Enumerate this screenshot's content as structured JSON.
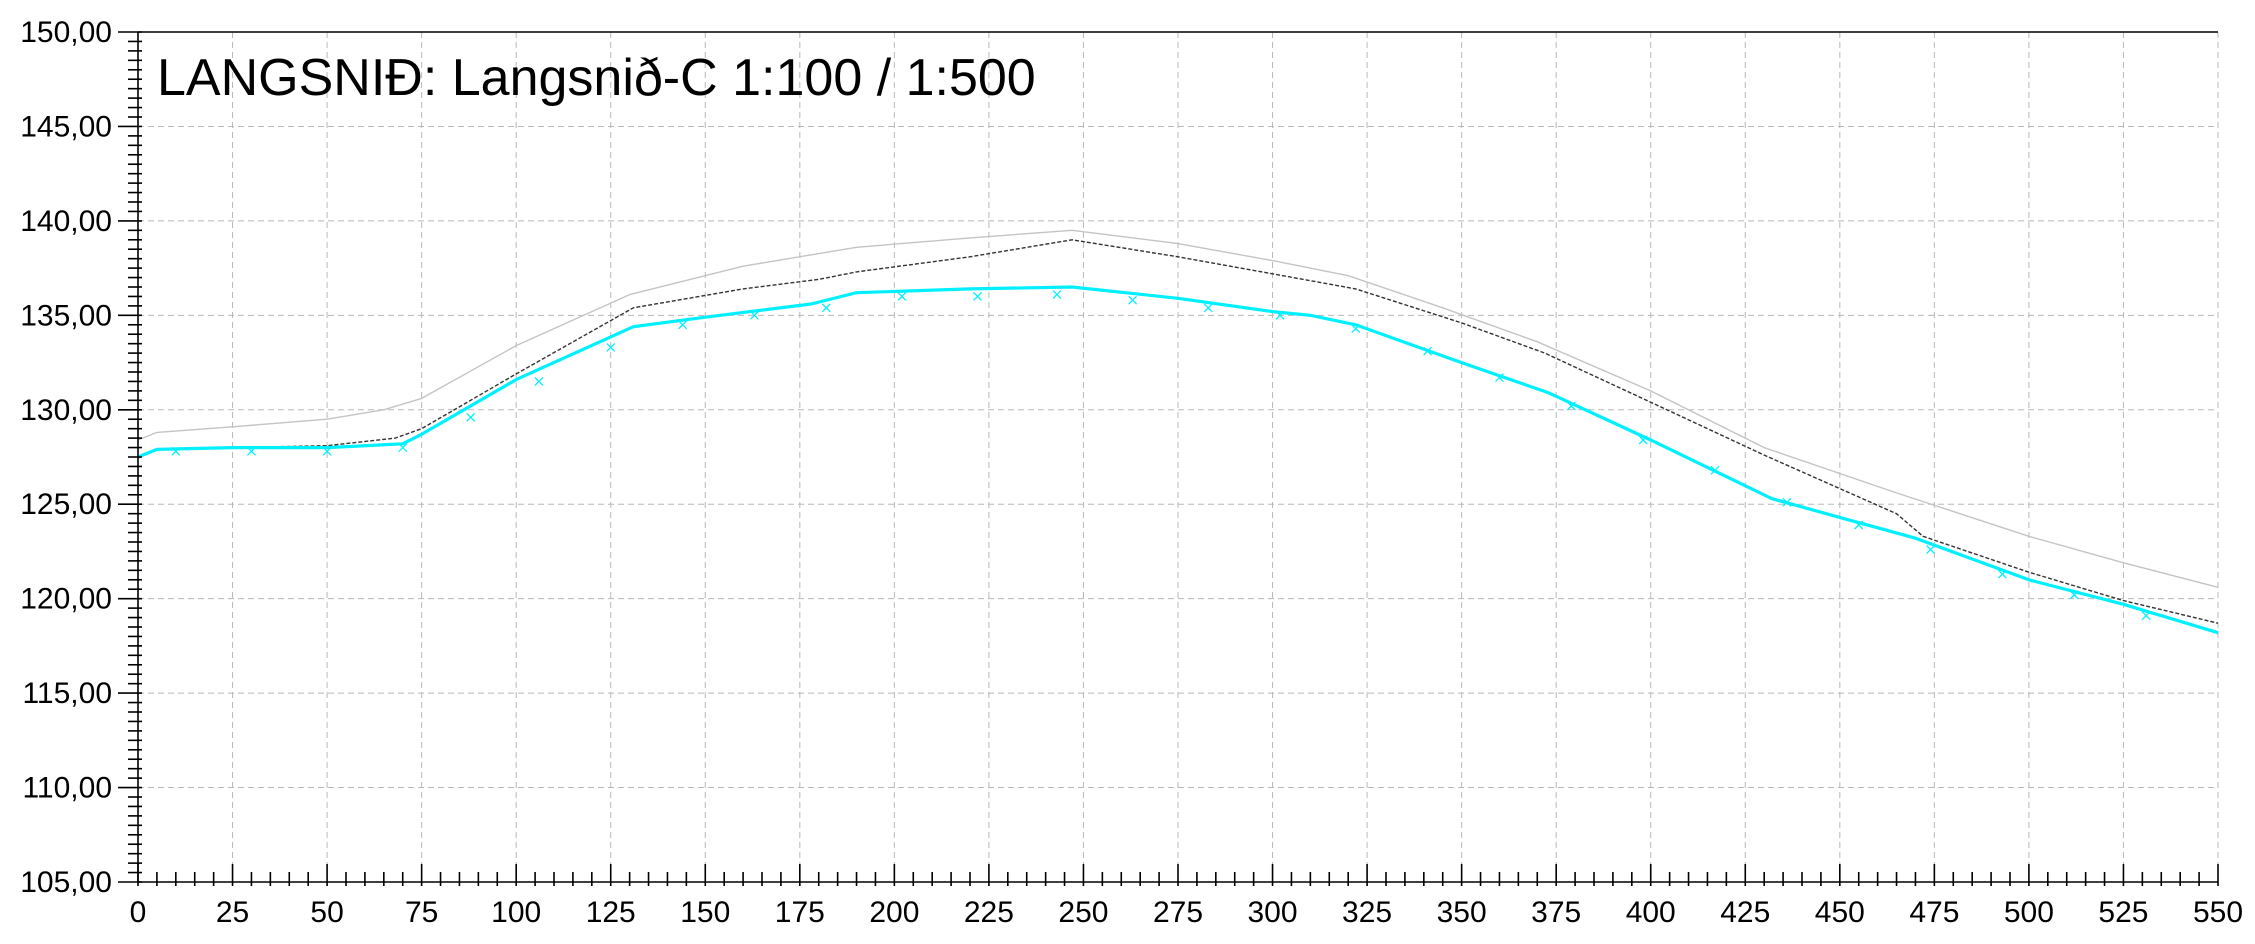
{
  "chart_data": {
    "type": "line",
    "title": "LANGSNIÐ: Langsnið-C 1:100 / 1:500",
    "xlabel": "",
    "ylabel": "",
    "xlim": [
      0,
      550
    ],
    "ylim": [
      105,
      150
    ],
    "x_ticks": [
      0,
      25,
      50,
      75,
      100,
      125,
      150,
      175,
      200,
      225,
      250,
      275,
      300,
      325,
      350,
      375,
      400,
      425,
      450,
      475,
      500,
      525,
      550
    ],
    "x_tick_labels": [
      "0",
      "25",
      "50",
      "75",
      "100",
      "125",
      "150",
      "175",
      "200",
      "225",
      "250",
      "275",
      "300",
      "325",
      "350",
      "375",
      "400",
      "425",
      "450",
      "475",
      "500",
      "525",
      "550"
    ],
    "y_ticks": [
      105,
      110,
      115,
      120,
      125,
      130,
      135,
      140,
      145,
      150
    ],
    "y_tick_labels": [
      "105,00",
      "110,00",
      "115,00",
      "120,00",
      "125,00",
      "130,00",
      "135,00",
      "140,00",
      "145,00",
      "150,00"
    ],
    "grid": true,
    "legend": "none",
    "series": [
      {
        "color": "#c4c4c4",
        "style": "solid-thin",
        "x": [
          0,
          5,
          25,
          50,
          65,
          75,
          100,
          130,
          160,
          190,
          220,
          247,
          275,
          300,
          320,
          345,
          370,
          400,
          430,
          465,
          500,
          525,
          550
        ],
        "y": [
          128.4,
          128.8,
          129.1,
          129.5,
          130.0,
          130.6,
          133.4,
          136.1,
          137.6,
          138.6,
          139.1,
          139.5,
          138.8,
          137.9,
          137.1,
          135.4,
          133.6,
          131.0,
          128.0,
          125.6,
          123.3,
          121.9,
          120.6
        ]
      },
      {
        "color": "#333333",
        "style": "dashed-thin",
        "x": [
          0,
          5,
          25,
          50,
          68,
          75,
          100,
          131,
          160,
          180,
          190,
          220,
          247,
          275,
          300,
          322,
          350,
          372,
          400,
          430,
          465,
          472,
          500,
          525,
          550
        ],
        "y": [
          127.5,
          127.9,
          128.0,
          128.1,
          128.5,
          129.0,
          131.9,
          135.4,
          136.4,
          136.9,
          137.3,
          138.1,
          139.0,
          138.1,
          137.2,
          136.4,
          134.6,
          133.0,
          130.4,
          127.6,
          124.5,
          123.3,
          121.4,
          119.9,
          118.7
        ]
      },
      {
        "color": "#00f0ff",
        "style": "solid-thick",
        "x": [
          0,
          5,
          25,
          50,
          70,
          75,
          100,
          131,
          150,
          178,
          190,
          220,
          247,
          275,
          300,
          310,
          322,
          350,
          373,
          400,
          432,
          450,
          470,
          500,
          525,
          550
        ],
        "y": [
          127.5,
          127.9,
          128.0,
          128.0,
          128.2,
          128.7,
          131.6,
          134.4,
          134.9,
          135.6,
          136.2,
          136.4,
          136.5,
          135.9,
          135.2,
          135.0,
          134.5,
          132.5,
          130.9,
          128.4,
          125.3,
          124.3,
          123.2,
          121.0,
          119.7,
          118.2
        ]
      }
    ],
    "markers": {
      "symbol": "x",
      "color": "#00f0ff",
      "x": [
        10,
        30,
        50,
        70,
        88,
        106,
        125,
        144,
        163,
        182,
        202,
        222,
        243,
        263,
        283,
        302,
        322,
        341,
        360,
        379,
        398,
        417,
        436,
        455,
        474,
        493,
        512,
        531
      ],
      "y": [
        127.8,
        127.8,
        127.8,
        128.0,
        129.6,
        131.5,
        133.3,
        134.5,
        135.0,
        135.4,
        136.0,
        136.0,
        136.1,
        135.8,
        135.4,
        135.0,
        134.3,
        133.1,
        131.7,
        130.2,
        128.4,
        126.8,
        125.1,
        123.9,
        122.6,
        121.3,
        120.2,
        119.1
      ]
    }
  }
}
